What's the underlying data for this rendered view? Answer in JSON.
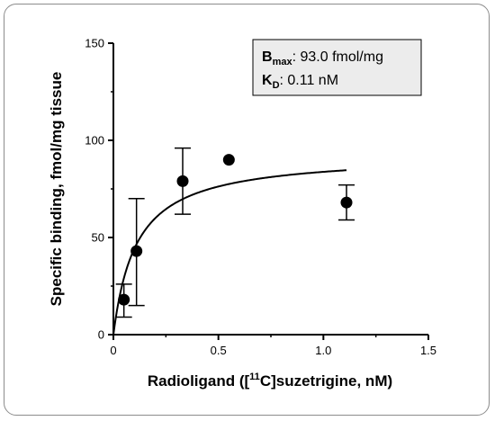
{
  "chart_data": {
    "type": "scatter",
    "xlabel_parts": {
      "pre": "Radioligand ([",
      "sup": "11",
      "post": "C]suzetrigine, nM)"
    },
    "ylabel": "Specific binding, fmol/mg tissue",
    "xlim": [
      0,
      1.5
    ],
    "ylim": [
      0,
      150
    ],
    "x_ticks": [
      0,
      0.5,
      1.0,
      1.5
    ],
    "x_tick_labels": [
      "0",
      "0.5",
      "1.0",
      "1.5"
    ],
    "y_ticks": [
      0,
      50,
      100,
      150
    ],
    "y_tick_labels": [
      "0",
      "50",
      "100",
      "150"
    ],
    "points": [
      {
        "x": 0.05,
        "y": 18,
        "err_low": 9,
        "err_high": 26
      },
      {
        "x": 0.11,
        "y": 43,
        "err_low": 15,
        "err_high": 70
      },
      {
        "x": 0.33,
        "y": 79,
        "err_low": 62,
        "err_high": 96
      },
      {
        "x": 0.55,
        "y": 90,
        "err_low": null,
        "err_high": null
      },
      {
        "x": 1.11,
        "y": 68,
        "err_low": 59,
        "err_high": 77
      }
    ],
    "fit": {
      "model": "one-site saturation",
      "bmax": 93.0,
      "kd": 0.11,
      "x_start": 0,
      "x_end": 1.11
    },
    "annotation": {
      "bmax_label": "B",
      "bmax_sub": "max",
      "bmax_text": ": 93.0 fmol/mg",
      "kd_label": "K",
      "kd_sub": "D",
      "kd_text": ": 0.11 nM"
    },
    "grid": false,
    "legend": "none"
  }
}
